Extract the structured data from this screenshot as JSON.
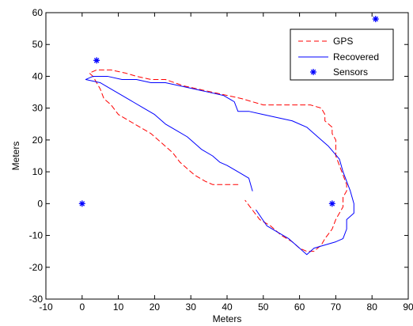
{
  "chart_data": {
    "type": "line",
    "title": "",
    "xlabel": "Meters",
    "ylabel": "Meters",
    "xlim": [
      -10,
      90
    ],
    "ylim": [
      -30,
      60
    ],
    "x_ticks": [
      -10,
      0,
      10,
      20,
      30,
      40,
      50,
      60,
      70,
      80,
      90
    ],
    "y_ticks": [
      -30,
      -20,
      -10,
      0,
      10,
      20,
      30,
      40,
      50,
      60
    ],
    "grid": false,
    "legend_position": "top-right",
    "series": [
      {
        "name": "GPS",
        "style": "dashed",
        "color": "#ff0000",
        "points": [
          [
            43,
            6
          ],
          [
            39,
            6
          ],
          [
            36,
            6
          ],
          [
            34,
            7
          ],
          [
            31,
            9
          ],
          [
            29,
            11
          ],
          [
            27,
            13
          ],
          [
            25,
            16
          ],
          [
            22,
            19
          ],
          [
            19,
            22
          ],
          [
            16,
            24
          ],
          [
            13,
            26
          ],
          [
            10,
            28
          ],
          [
            8,
            31
          ],
          [
            6,
            33
          ],
          [
            5,
            36
          ],
          [
            4,
            38
          ],
          [
            3,
            40
          ],
          [
            2,
            41
          ],
          [
            4,
            42
          ],
          [
            8,
            42
          ],
          [
            12,
            41
          ],
          [
            15,
            40
          ],
          [
            19,
            39
          ],
          [
            23,
            39
          ],
          [
            28,
            37
          ],
          [
            32,
            36
          ],
          [
            36,
            35
          ],
          [
            40,
            34
          ],
          [
            44,
            33
          ],
          [
            47,
            32
          ],
          [
            50,
            31
          ],
          [
            54,
            31
          ],
          [
            57,
            31
          ],
          [
            60,
            31
          ],
          [
            63,
            31
          ],
          [
            66,
            30
          ],
          [
            67,
            28
          ],
          [
            67,
            26
          ],
          [
            69,
            24
          ],
          [
            69,
            22
          ],
          [
            70,
            20
          ],
          [
            70,
            18
          ],
          [
            70,
            15
          ],
          [
            71,
            12
          ],
          [
            72,
            9
          ],
          [
            73,
            6
          ],
          [
            73,
            4
          ],
          [
            72,
            2
          ],
          [
            72,
            -1
          ],
          [
            71,
            -3
          ],
          [
            70,
            -5
          ],
          [
            69,
            -8
          ],
          [
            67,
            -11
          ],
          [
            66,
            -13
          ],
          [
            64,
            -15
          ],
          [
            62,
            -15
          ],
          [
            60,
            -14
          ],
          [
            58,
            -12
          ],
          [
            55,
            -10
          ],
          [
            52,
            -7
          ],
          [
            49,
            -5
          ],
          [
            47,
            -2
          ],
          [
            45,
            1
          ]
        ]
      },
      {
        "name": "Recovered",
        "style": "solid",
        "color": "#0000ff",
        "points": [
          [
            47,
            4
          ],
          [
            46,
            8
          ],
          [
            43,
            10
          ],
          [
            40,
            12
          ],
          [
            38,
            13
          ],
          [
            36,
            15
          ],
          [
            33,
            17
          ],
          [
            31,
            19
          ],
          [
            29,
            21
          ],
          [
            26,
            23
          ],
          [
            23,
            25
          ],
          [
            20,
            28
          ],
          [
            17,
            30
          ],
          [
            14,
            32
          ],
          [
            11,
            34
          ],
          [
            8,
            36
          ],
          [
            5,
            38
          ],
          [
            1,
            39
          ],
          [
            3,
            40
          ],
          [
            7,
            40
          ],
          [
            11,
            39
          ],
          [
            15,
            39
          ],
          [
            19,
            38
          ],
          [
            23,
            38
          ],
          [
            27,
            37
          ],
          [
            31,
            36
          ],
          [
            35,
            35
          ],
          [
            39,
            34
          ],
          [
            42,
            32
          ],
          [
            43,
            29
          ],
          [
            46,
            29
          ],
          [
            50,
            28
          ],
          [
            54,
            27
          ],
          [
            58,
            26
          ],
          [
            62,
            24
          ],
          [
            65,
            21
          ],
          [
            68,
            18
          ],
          [
            71,
            14
          ],
          [
            72,
            10
          ],
          [
            73,
            7
          ],
          [
            74,
            4
          ],
          [
            75,
            0
          ],
          [
            75,
            -3
          ],
          [
            73,
            -5
          ],
          [
            73,
            -8
          ],
          [
            72,
            -11
          ],
          [
            70,
            -12
          ],
          [
            67,
            -13
          ],
          [
            64,
            -14
          ],
          [
            62,
            -16
          ],
          [
            60,
            -14
          ],
          [
            57,
            -11
          ],
          [
            54,
            -9
          ],
          [
            51,
            -7
          ],
          [
            48,
            -2
          ]
        ]
      }
    ],
    "sensors": {
      "name": "Sensors",
      "marker": "asterisk",
      "color": "#0000ff",
      "points": [
        [
          0,
          0
        ],
        [
          4,
          45
        ],
        [
          69,
          0
        ],
        [
          81,
          58
        ]
      ]
    }
  }
}
